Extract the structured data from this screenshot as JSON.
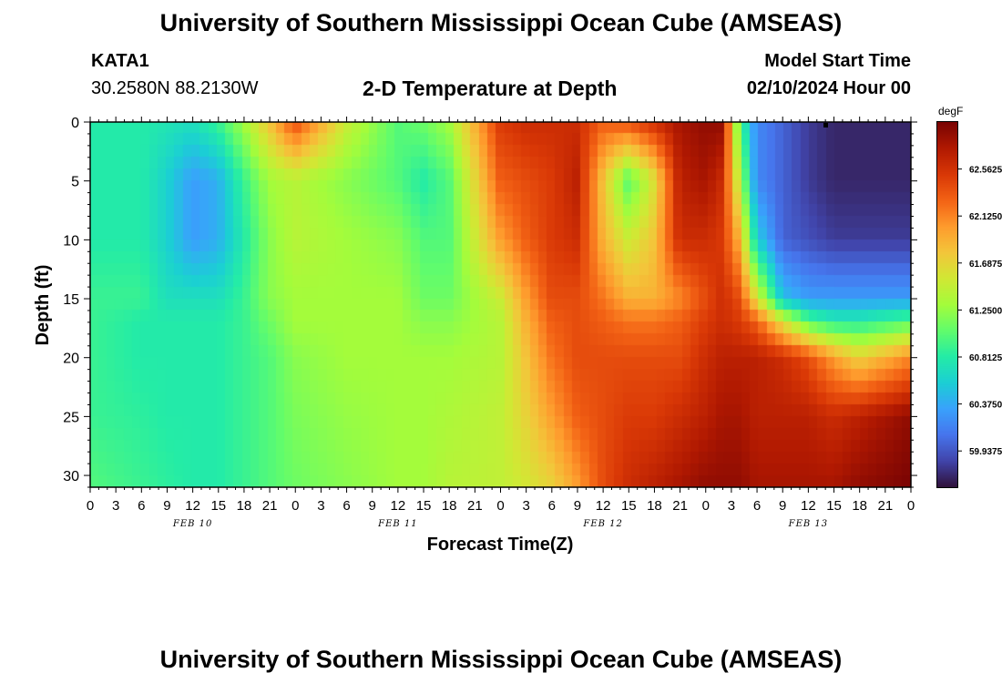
{
  "header": {
    "title": "University of Southern Mississippi Ocean Cube (AMSEAS)",
    "station": "KATA1",
    "coords": "30.2580N  88.2130W",
    "subtitle": "2-D Temperature at Depth",
    "model_label": "Model Start Time",
    "model_time": "02/10/2024 Hour 00"
  },
  "footer": {
    "title": "University of Southern Mississippi Ocean Cube (AMSEAS)"
  },
  "colors": {
    "background": "#ffffff",
    "axis": "#000000",
    "colormap": [
      "#30123b",
      "#4145ab",
      "#4675ed",
      "#39a2fc",
      "#1bcfd4",
      "#24eca6",
      "#61fc6c",
      "#a4fc3b",
      "#d1e834",
      "#f3c63a",
      "#fe9b2d",
      "#f36315",
      "#d93806",
      "#b11901",
      "#7a0403"
    ]
  },
  "chart_data": {
    "type": "heatmap",
    "title": "2-D Temperature at Depth",
    "xlabel": "Forecast Time(Z)",
    "ylabel": "Depth (ft)",
    "x_hours": [
      0,
      3,
      6,
      9,
      12,
      15,
      18,
      21,
      24,
      27,
      30,
      33,
      36,
      39,
      42,
      45,
      48,
      51,
      54,
      57,
      60,
      63,
      66,
      69,
      72,
      75,
      78,
      81,
      84,
      87,
      90,
      93,
      96
    ],
    "x_tick_labels": [
      "0",
      "3",
      "6",
      "9",
      "12",
      "15",
      "18",
      "21",
      "0",
      "3",
      "6",
      "9",
      "12",
      "15",
      "18",
      "21",
      "0",
      "3",
      "6",
      "9",
      "12",
      "15",
      "18",
      "21",
      "0",
      "3",
      "6",
      "9",
      "12",
      "15",
      "18",
      "21",
      "0"
    ],
    "date_labels": [
      {
        "label": "FEB 10",
        "hour": 12
      },
      {
        "label": "FEB 11",
        "hour": 36
      },
      {
        "label": "FEB 12",
        "hour": 60
      },
      {
        "label": "FEB 13",
        "hour": 84
      }
    ],
    "y_ticks": [
      0,
      5,
      10,
      15,
      20,
      25,
      30
    ],
    "y_tick_labels": [
      "0",
      "5",
      "10",
      "15",
      "20",
      "25",
      "30"
    ],
    "ylim": [
      0,
      31
    ],
    "xlim": [
      0,
      96
    ],
    "colorbar": {
      "unit": "degF",
      "range": [
        59.6,
        63.0
      ],
      "ticks": [
        59.9375,
        60.375,
        60.8125,
        61.25,
        61.6875,
        62.125,
        62.5625
      ],
      "tick_labels": [
        "59.9375",
        "60.3750",
        "60.8125",
        "61.2500",
        "61.6875",
        "62.1250",
        "62.5625"
      ]
    },
    "depths": [
      0,
      5,
      10,
      15,
      17,
      20,
      25,
      31
    ],
    "grid_hours": [
      0,
      6,
      9,
      12,
      15,
      18,
      21,
      24,
      30,
      36,
      39,
      42,
      48,
      51,
      54,
      57,
      60,
      63,
      66,
      69,
      72,
      74,
      76,
      78,
      81,
      84,
      87,
      90,
      93,
      96
    ],
    "grid_values": [
      [
        60.8,
        60.8,
        60.75,
        60.7,
        60.9,
        61.3,
        61.8,
        62.4,
        61.5,
        61.0,
        61.1,
        61.3,
        62.5,
        62.6,
        62.6,
        62.6,
        62.3,
        62.4,
        62.6,
        62.8,
        62.9,
        62.9,
        61.0,
        60.2,
        60.0,
        59.8,
        59.7,
        59.7,
        59.7,
        59.7
      ],
      [
        60.8,
        60.8,
        60.6,
        60.3,
        60.4,
        60.9,
        61.3,
        61.4,
        61.2,
        61.0,
        60.8,
        61.0,
        62.3,
        62.4,
        62.5,
        62.7,
        61.8,
        61.0,
        61.6,
        62.7,
        62.8,
        62.6,
        61.4,
        60.2,
        60.0,
        59.8,
        59.7,
        59.7,
        59.7,
        59.7
      ],
      [
        60.8,
        60.8,
        60.6,
        60.3,
        60.4,
        60.8,
        61.2,
        61.4,
        61.3,
        61.2,
        61.0,
        61.0,
        62.0,
        62.3,
        62.5,
        62.6,
        61.9,
        61.5,
        61.8,
        62.6,
        62.6,
        62.5,
        61.9,
        60.6,
        60.0,
        59.9,
        59.8,
        59.8,
        59.8,
        59.8
      ],
      [
        60.9,
        60.9,
        60.7,
        60.7,
        60.7,
        60.9,
        61.2,
        61.3,
        61.3,
        61.3,
        61.1,
        61.1,
        61.5,
        62.0,
        62.4,
        62.4,
        62.2,
        61.9,
        61.9,
        62.1,
        62.4,
        62.6,
        62.4,
        61.6,
        60.5,
        60.3,
        60.3,
        60.3,
        60.3,
        60.3
      ],
      [
        60.9,
        60.8,
        60.8,
        60.8,
        60.8,
        60.9,
        61.1,
        61.3,
        61.3,
        61.3,
        61.2,
        61.2,
        61.4,
        61.9,
        62.3,
        62.4,
        62.3,
        62.2,
        62.2,
        62.3,
        62.5,
        62.6,
        62.5,
        62.3,
        61.6,
        61.0,
        60.8,
        60.8,
        60.9,
        61.0
      ],
      [
        60.9,
        60.8,
        60.8,
        60.8,
        60.8,
        60.9,
        61.0,
        61.2,
        61.3,
        61.3,
        61.3,
        61.3,
        61.4,
        61.8,
        62.2,
        62.4,
        62.4,
        62.4,
        62.4,
        62.4,
        62.6,
        62.7,
        62.7,
        62.7,
        62.6,
        62.4,
        62.0,
        61.7,
        61.9,
        62.1
      ],
      [
        60.9,
        60.85,
        60.8,
        60.8,
        60.8,
        60.9,
        61.0,
        61.15,
        61.25,
        61.3,
        61.3,
        61.35,
        61.45,
        61.7,
        62.0,
        62.3,
        62.4,
        62.5,
        62.5,
        62.6,
        62.7,
        62.8,
        62.8,
        62.7,
        62.7,
        62.7,
        62.6,
        62.7,
        62.8,
        62.9
      ],
      [
        61.0,
        60.9,
        60.85,
        60.8,
        60.8,
        60.9,
        61.0,
        61.1,
        61.2,
        61.3,
        61.3,
        61.4,
        61.45,
        61.55,
        61.7,
        62.0,
        62.4,
        62.6,
        62.7,
        62.8,
        62.9,
        62.9,
        62.9,
        62.8,
        62.8,
        62.8,
        62.8,
        62.9,
        62.95,
        63.0
      ]
    ]
  }
}
